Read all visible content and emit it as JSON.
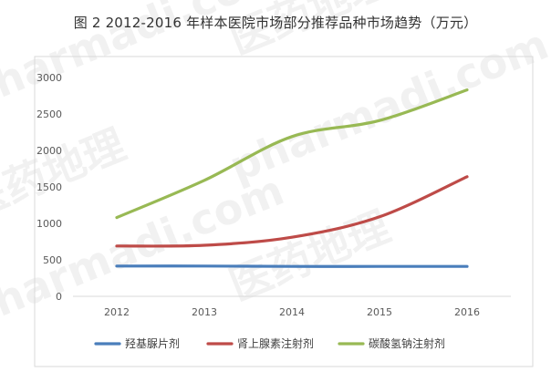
{
  "chart_data": {
    "type": "line",
    "title": "图 2 2012-2016 年样本医院市场部分推荐品种市场趋势（万元）",
    "categories": [
      "2012",
      "2013",
      "2014",
      "2015",
      "2016"
    ],
    "ylim": [
      0,
      3000
    ],
    "yticks": [
      "0",
      "500",
      "1000",
      "1500",
      "2000",
      "2500",
      "3000"
    ],
    "grid": false,
    "legend_position": "bottom",
    "series": [
      {
        "name": "羟基脲片剂",
        "color": "#4a7ebb",
        "values": [
          415,
          415,
          410,
          410,
          410
        ]
      },
      {
        "name": "肾上腺素注射剂",
        "color": "#be4b48",
        "values": [
          690,
          700,
          810,
          1090,
          1640
        ]
      },
      {
        "name": "碳酸氢钠注射剂",
        "color": "#98b954",
        "values": [
          1080,
          1590,
          2190,
          2410,
          2830
        ]
      }
    ]
  },
  "watermark": {
    "text": "pharmadi.com",
    "brand": "医药地理"
  }
}
